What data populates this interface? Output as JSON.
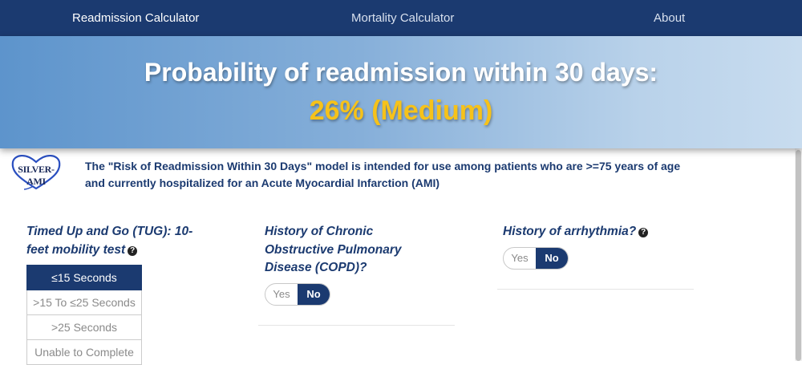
{
  "nav": {
    "items": [
      {
        "label": "Readmission Calculator"
      },
      {
        "label": "Mortality Calculator"
      },
      {
        "label": "About"
      }
    ]
  },
  "banner": {
    "title": "Probability of readmission within 30 days:",
    "result": "26% (Medium)",
    "result_color": "#f6c21a"
  },
  "logo": {
    "text": "SILVER-AMI",
    "icon": "heart-outline-icon"
  },
  "intro": "The \"Risk of Readmission Within 30 Days\" model is intended for use among patients who are >=75 years of age and currently hospitalized for an Acute Myocardial Infarction (AMI)",
  "questions": {
    "tug": {
      "label": "Timed Up and Go (TUG): 10-feet mobility test",
      "help": "?",
      "options": [
        "≤15 Seconds",
        ">15 To ≤25 Seconds",
        ">25 Seconds",
        "Unable to Complete"
      ],
      "selected": "≤15 Seconds"
    },
    "copd": {
      "label": "History of Chronic Obstructive Pulmonary Disease (COPD)?",
      "yes": "Yes",
      "no": "No",
      "selected": "No"
    },
    "arrhythmia": {
      "label": "History of arrhythmia?",
      "help": "?",
      "yes": "Yes",
      "no": "No",
      "selected": "No"
    }
  },
  "colors": {
    "nav": "#1b3a70",
    "accent": "#1b3a70",
    "result": "#f6c21a"
  }
}
